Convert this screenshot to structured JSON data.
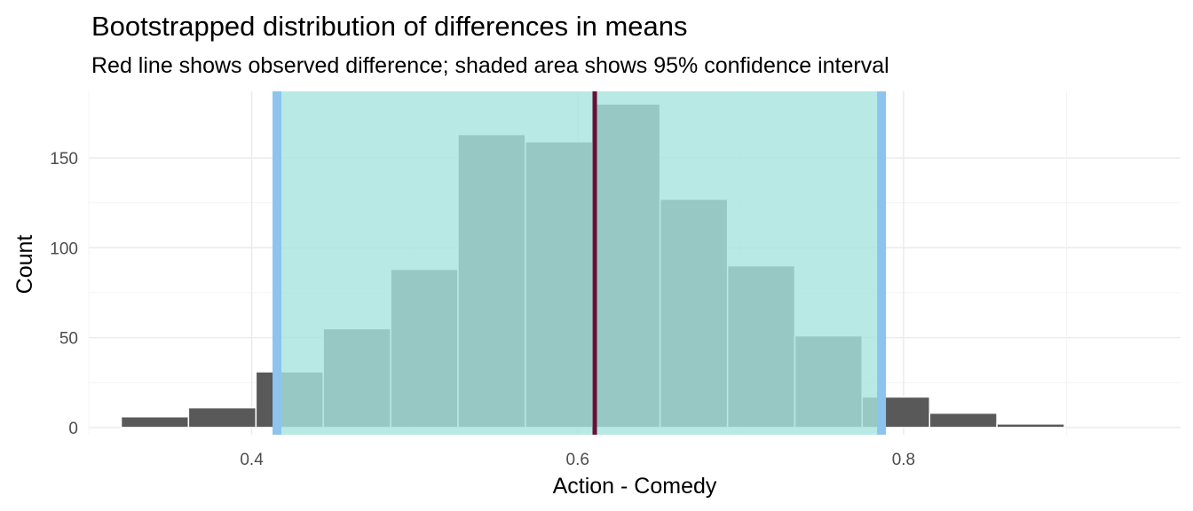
{
  "chart_data": {
    "type": "bar",
    "title": "Bootstrapped distribution of differences in means",
    "subtitle": "Red line shows observed difference; shaded area shows 95% confidence interval",
    "xlabel": "Action - Comedy",
    "ylabel": "Count",
    "xlim": [
      0.3,
      0.97
    ],
    "ylim": [
      -4,
      187
    ],
    "x_ticks": [
      0.4,
      0.6,
      0.8
    ],
    "x_tick_labels": [
      "0.4",
      "0.6",
      "0.8"
    ],
    "y_ticks": [
      0,
      50,
      100,
      150
    ],
    "y_tick_labels": [
      "0",
      "50",
      "100",
      "150"
    ],
    "grid": true,
    "bins": [
      {
        "x0": 0.3199,
        "x1": 0.3612,
        "count": 6
      },
      {
        "x0": 0.3612,
        "x1": 0.4026,
        "count": 11
      },
      {
        "x0": 0.4026,
        "x1": 0.4439,
        "count": 31
      },
      {
        "x0": 0.4439,
        "x1": 0.4853,
        "count": 55
      },
      {
        "x0": 0.4853,
        "x1": 0.5266,
        "count": 88
      },
      {
        "x0": 0.5266,
        "x1": 0.5679,
        "count": 163
      },
      {
        "x0": 0.5679,
        "x1": 0.6093,
        "count": 159
      },
      {
        "x0": 0.6093,
        "x1": 0.6506,
        "count": 180
      },
      {
        "x0": 0.6506,
        "x1": 0.692,
        "count": 127
      },
      {
        "x0": 0.692,
        "x1": 0.7333,
        "count": 90
      },
      {
        "x0": 0.7333,
        "x1": 0.7746,
        "count": 51
      },
      {
        "x0": 0.7746,
        "x1": 0.816,
        "count": 17
      },
      {
        "x0": 0.816,
        "x1": 0.8573,
        "count": 8
      },
      {
        "x0": 0.8573,
        "x1": 0.8987,
        "count": 2
      }
    ],
    "observed_difference": 0.6105,
    "confidence_interval": [
      0.4155,
      0.7865
    ],
    "colors": {
      "bar": "#595959",
      "bar_edge": "#ffffff",
      "ci_fill": "#a6e3df",
      "ci_line": "#8cc4ee",
      "observed_line": "#6a0f35",
      "grid": "#ebebeb"
    }
  }
}
